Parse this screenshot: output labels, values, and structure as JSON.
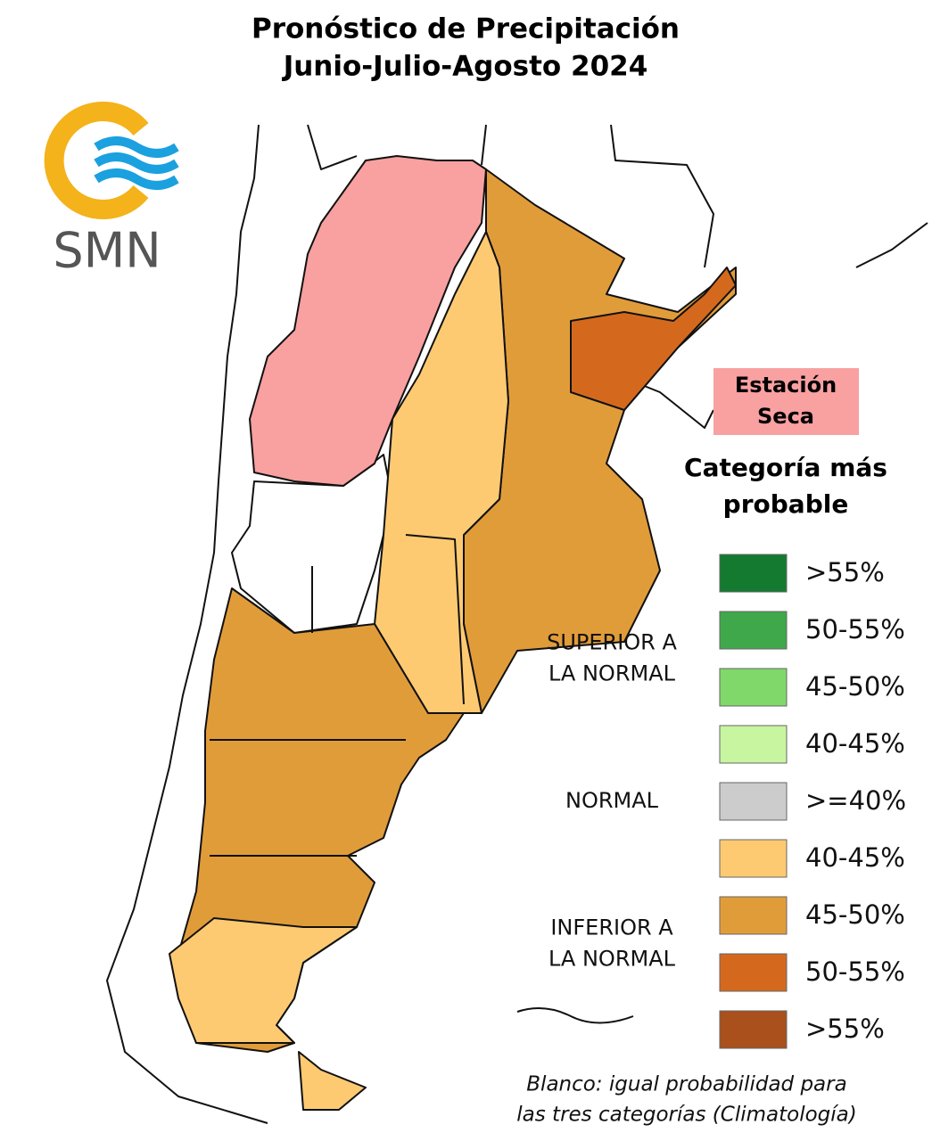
{
  "header": {
    "title_line1": "Pronóstico de Precipitación",
    "title_line2": "Junio-Julio-Agosto 2024"
  },
  "logo": {
    "text": "SMN"
  },
  "dry_season": {
    "line1": "Estación",
    "line2": "Seca",
    "color": "#f9a0a0"
  },
  "legend": {
    "title_line1": "Categoría más",
    "title_line2": "probable",
    "groups": [
      {
        "label_lines": [
          "SUPERIOR A",
          "LA NORMAL"
        ],
        "items": [
          {
            "label": ">55%",
            "color": "#137a2f"
          },
          {
            "label": "50-55%",
            "color": "#3fa84b"
          },
          {
            "label": "45-50%",
            "color": "#80d86a"
          },
          {
            "label": "40-45%",
            "color": "#c8f5a0"
          }
        ]
      },
      {
        "label_lines": [
          "NORMAL"
        ],
        "items": [
          {
            "label": ">=40%",
            "color": "#cccccc"
          }
        ]
      },
      {
        "label_lines": [
          "INFERIOR A",
          "LA NORMAL"
        ],
        "items": [
          {
            "label": "40-45%",
            "color": "#fdca72"
          },
          {
            "label": "45-50%",
            "color": "#e19c3a"
          },
          {
            "label": "50-55%",
            "color": "#d4691e"
          },
          {
            "label": ">55%",
            "color": "#a9501c"
          }
        ]
      }
    ]
  },
  "note": {
    "line1": "Blanco: igual probabilidad para",
    "line2": "las tres categorías (Climatología)"
  }
}
